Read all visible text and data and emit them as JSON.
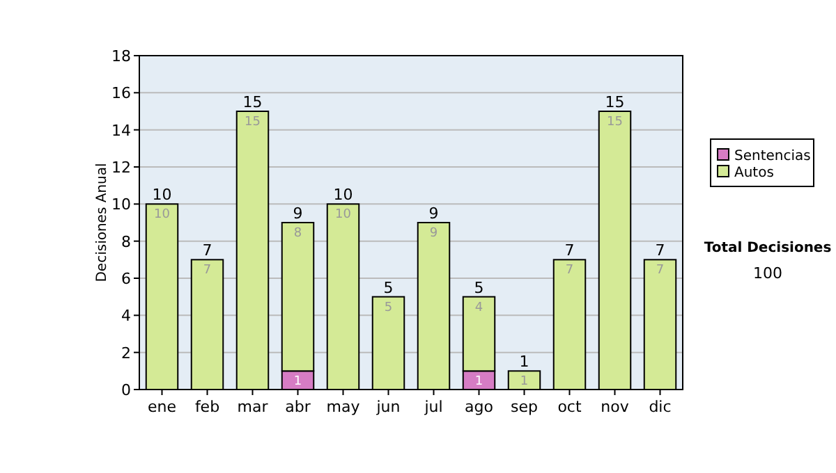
{
  "chart_data": {
    "type": "bar",
    "stacked": true,
    "ylabel": "Decisiones Anual",
    "categories": [
      "ene",
      "feb",
      "mar",
      "abr",
      "may",
      "jun",
      "jul",
      "ago",
      "sep",
      "oct",
      "nov",
      "dic"
    ],
    "series": [
      {
        "name": "Sentencias",
        "color": "#d67cc4",
        "values": [
          0,
          0,
          0,
          1,
          0,
          0,
          0,
          1,
          0,
          0,
          0,
          0
        ],
        "value_labels": [
          null,
          null,
          null,
          "1",
          null,
          null,
          null,
          "1",
          null,
          null,
          null,
          null
        ]
      },
      {
        "name": "Autos",
        "color": "#d4ea96",
        "values": [
          10,
          7,
          15,
          8,
          10,
          5,
          9,
          4,
          1,
          7,
          15,
          7
        ],
        "value_labels": [
          "10",
          "7",
          "15",
          "8",
          "10",
          "5",
          "9",
          "4",
          "1",
          "7",
          "15",
          "7"
        ]
      }
    ],
    "totals": [
      "10",
      "7",
      "15",
      "9",
      "10",
      "5",
      "9",
      "5",
      "1",
      "7",
      "15",
      "7"
    ],
    "ylim": [
      0,
      18
    ],
    "yticks": [
      0,
      2,
      4,
      6,
      8,
      10,
      12,
      14,
      16,
      18
    ],
    "grid": "y",
    "legend": "right",
    "annotations": [
      "Total Decisiones",
      "100"
    ]
  }
}
